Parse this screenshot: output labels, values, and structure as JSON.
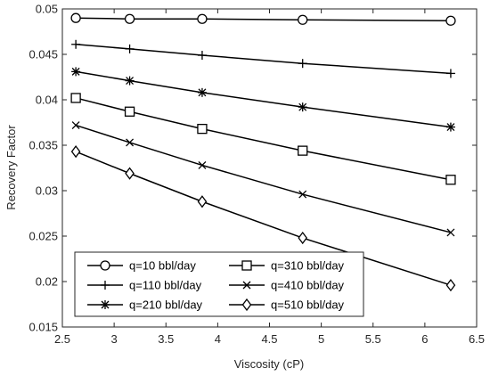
{
  "chart_data": {
    "type": "line",
    "xlabel": "Viscosity (cP)",
    "ylabel": "Recovery Factor",
    "xlim": [
      2.5,
      6.5
    ],
    "ylim": [
      0.015,
      0.05
    ],
    "xticks": [
      2.5,
      3,
      3.5,
      4,
      4.5,
      5,
      5.5,
      6,
      6.5
    ],
    "xtick_labels": [
      "2.5",
      "3",
      "3.5",
      "4",
      "4.5",
      "5",
      "5.5",
      "6",
      "6.5"
    ],
    "yticks": [
      0.015,
      0.02,
      0.025,
      0.03,
      0.035,
      0.04,
      0.045,
      0.05
    ],
    "ytick_labels": [
      "0.015",
      "0.02",
      "0.025",
      "0.03",
      "0.035",
      "0.04",
      "0.045",
      "0.05"
    ],
    "grid": false,
    "legend_position": "bottom-left",
    "x": [
      2.63,
      3.15,
      3.85,
      4.82,
      6.25
    ],
    "series": [
      {
        "name": "q=10 bbl/day",
        "marker": "circle",
        "values": [
          0.049,
          0.0489,
          0.0489,
          0.0488,
          0.0487
        ]
      },
      {
        "name": "q=110 bbl/day",
        "marker": "plus",
        "values": [
          0.0461,
          0.0456,
          0.0449,
          0.044,
          0.0429
        ]
      },
      {
        "name": "q=210 bbl/day",
        "marker": "asterisk",
        "values": [
          0.0431,
          0.0421,
          0.0408,
          0.0392,
          0.037
        ]
      },
      {
        "name": "q=310 bbl/day",
        "marker": "square",
        "values": [
          0.0402,
          0.0387,
          0.0368,
          0.0344,
          0.0312
        ]
      },
      {
        "name": "q=410 bbl/day",
        "marker": "x",
        "values": [
          0.0372,
          0.0353,
          0.0328,
          0.0296,
          0.0254
        ]
      },
      {
        "name": "q=510 bbl/day",
        "marker": "diamond",
        "values": [
          0.0343,
          0.0319,
          0.0288,
          0.0248,
          0.0196
        ]
      }
    ],
    "legend_order": [
      0,
      3,
      1,
      4,
      2,
      5
    ],
    "colors": {
      "line": "#000000",
      "axis": "#262626",
      "background": "#ffffff"
    }
  }
}
